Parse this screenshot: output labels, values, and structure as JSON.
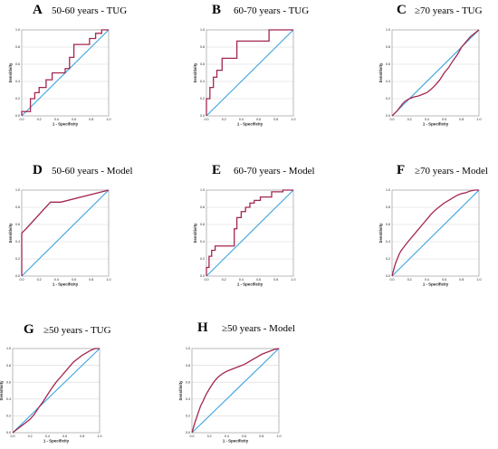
{
  "colors": {
    "roc": "#a3264f",
    "reference": "#3aa3e0",
    "grid": "#d8d8d8"
  },
  "chart_data": [
    {
      "type": "line",
      "letter": "A",
      "title": "50-60 years  - TUG",
      "xlabel": "1 - Specificity",
      "ylabel": "Sensitivity",
      "xlim": [
        0,
        1
      ],
      "ylim": [
        0,
        1
      ],
      "xticks": [
        "0.0",
        "0.2",
        "0.4",
        "0.6",
        "0.8",
        "1.0"
      ],
      "yticks": [
        "0.0",
        "0.2",
        "0.4",
        "0.6",
        "0.8",
        "1.0"
      ],
      "grid": true,
      "series": [
        {
          "x": [
            0,
            0,
            0.1,
            0.1,
            0.15,
            0.15,
            0.2,
            0.2,
            0.28,
            0.28,
            0.35,
            0.35,
            0.4,
            0.4,
            0.5,
            0.5,
            0.55,
            0.55,
            0.6,
            0.6,
            0.7,
            0.7,
            0.78,
            0.78,
            0.85,
            0.85,
            0.92,
            0.92,
            1
          ],
          "y": [
            0,
            0.05,
            0.05,
            0.2,
            0.2,
            0.27,
            0.27,
            0.33,
            0.33,
            0.42,
            0.42,
            0.5,
            0.5,
            0.5,
            0.5,
            0.55,
            0.55,
            0.68,
            0.68,
            0.83,
            0.83,
            0.83,
            0.83,
            0.9,
            0.9,
            0.96,
            0.96,
            1,
            1
          ]
        },
        {
          "x": [
            0,
            1
          ],
          "y": [
            0,
            1
          ]
        }
      ]
    },
    {
      "type": "line",
      "letter": "B",
      "title": "60-70 years  - TUG",
      "xlabel": "1 - Specificity",
      "ylabel": "Sensitivity",
      "xlim": [
        0,
        1
      ],
      "ylim": [
        0,
        1
      ],
      "xticks": [
        "0.0",
        "0.2",
        "0.4",
        "0.6",
        "0.8",
        "1.0"
      ],
      "yticks": [
        "0.0",
        "0.2",
        "0.4",
        "0.6",
        "0.8",
        "1.0"
      ],
      "grid": true,
      "series": [
        {
          "x": [
            0,
            0,
            0.04,
            0.04,
            0.08,
            0.08,
            0.12,
            0.12,
            0.18,
            0.18,
            0.25,
            0.25,
            0.35,
            0.35,
            0.72,
            0.72,
            1
          ],
          "y": [
            0,
            0.2,
            0.2,
            0.33,
            0.33,
            0.45,
            0.45,
            0.53,
            0.53,
            0.67,
            0.67,
            0.67,
            0.67,
            0.87,
            0.87,
            1,
            1
          ]
        },
        {
          "x": [
            0,
            1
          ],
          "y": [
            0,
            1
          ]
        }
      ]
    },
    {
      "type": "line",
      "letter": "C",
      "title": "≥70 years  - TUG",
      "xlabel": "1 - Specificity",
      "ylabel": "Sensitivity",
      "xlim": [
        0,
        1
      ],
      "ylim": [
        0,
        1
      ],
      "xticks": [
        "0.0",
        "0.2",
        "0.4",
        "0.6",
        "0.8",
        "1.0"
      ],
      "yticks": [
        "0.0",
        "0.2",
        "0.4",
        "0.6",
        "0.8",
        "1.0"
      ],
      "grid": true,
      "series": [
        {
          "x": [
            0,
            0.03,
            0.06,
            0.09,
            0.12,
            0.15,
            0.2,
            0.25,
            0.3,
            0.35,
            0.4,
            0.45,
            0.5,
            0.55,
            0.6,
            0.65,
            0.7,
            0.75,
            0.8,
            0.85,
            0.9,
            0.95,
            1
          ],
          "y": [
            0,
            0.03,
            0.06,
            0.1,
            0.14,
            0.17,
            0.2,
            0.22,
            0.23,
            0.25,
            0.27,
            0.31,
            0.36,
            0.42,
            0.5,
            0.56,
            0.64,
            0.71,
            0.8,
            0.86,
            0.92,
            0.96,
            1
          ]
        },
        {
          "x": [
            0,
            1
          ],
          "y": [
            0,
            1
          ]
        }
      ]
    },
    {
      "type": "line",
      "letter": "D",
      "title": "50-60 years  - Model",
      "xlabel": "1 - Specificity",
      "ylabel": "Sensitivity",
      "xlim": [
        0,
        1
      ],
      "ylim": [
        0,
        1
      ],
      "xticks": [
        "0.0",
        "0.2",
        "0.4",
        "0.6",
        "0.8",
        "1.0"
      ],
      "yticks": [
        "0.0",
        "0.2",
        "0.4",
        "0.6",
        "0.8",
        "1.0"
      ],
      "grid": true,
      "series": [
        {
          "x": [
            0,
            0,
            0.05,
            0.33,
            0.38,
            0.45,
            1
          ],
          "y": [
            0,
            0.5,
            0.55,
            0.86,
            0.86,
            0.86,
            1
          ]
        },
        {
          "x": [
            0,
            1
          ],
          "y": [
            0,
            1
          ]
        }
      ]
    },
    {
      "type": "line",
      "letter": "E",
      "title": "60-70 years  - Model",
      "xlabel": "1 - Specificity",
      "ylabel": "Sensitivity",
      "xlim": [
        0,
        1
      ],
      "ylim": [
        0,
        1
      ],
      "xticks": [
        "0.0",
        "0.2",
        "0.4",
        "0.6",
        "0.8",
        "1.0"
      ],
      "yticks": [
        "0.0",
        "0.2",
        "0.4",
        "0.6",
        "0.8",
        "1.0"
      ],
      "grid": true,
      "series": [
        {
          "x": [
            0,
            0,
            0.03,
            0.03,
            0.06,
            0.06,
            0.1,
            0.1,
            0.32,
            0.32,
            0.35,
            0.35,
            0.4,
            0.4,
            0.45,
            0.45,
            0.5,
            0.5,
            0.55,
            0.55,
            0.62,
            0.62,
            0.75,
            0.75,
            0.88,
            0.88,
            1
          ],
          "y": [
            0,
            0.1,
            0.1,
            0.23,
            0.23,
            0.3,
            0.3,
            0.35,
            0.35,
            0.55,
            0.55,
            0.68,
            0.68,
            0.75,
            0.75,
            0.8,
            0.8,
            0.85,
            0.85,
            0.88,
            0.88,
            0.92,
            0.92,
            0.98,
            0.98,
            1,
            1
          ]
        },
        {
          "x": [
            0,
            1
          ],
          "y": [
            0,
            1
          ]
        }
      ]
    },
    {
      "type": "line",
      "letter": "F",
      "title": "≥70 years  - Model",
      "xlabel": "1 - Specificity",
      "ylabel": "Sensitivity",
      "xlim": [
        0,
        1
      ],
      "ylim": [
        0,
        1
      ],
      "xticks": [
        "0.0",
        "0.2",
        "0.4",
        "0.6",
        "0.8",
        "1.0"
      ],
      "yticks": [
        "0.0",
        "0.2",
        "0.4",
        "0.6",
        "0.8",
        "1.0"
      ],
      "grid": true,
      "series": [
        {
          "x": [
            0,
            0.02,
            0.04,
            0.06,
            0.08,
            0.1,
            0.13,
            0.16,
            0.2,
            0.25,
            0.3,
            0.35,
            0.4,
            0.45,
            0.5,
            0.55,
            0.6,
            0.65,
            0.7,
            0.75,
            0.8,
            0.85,
            0.9,
            0.95,
            1
          ],
          "y": [
            0,
            0.08,
            0.15,
            0.2,
            0.25,
            0.29,
            0.33,
            0.37,
            0.42,
            0.48,
            0.54,
            0.6,
            0.66,
            0.72,
            0.77,
            0.81,
            0.85,
            0.88,
            0.91,
            0.94,
            0.96,
            0.97,
            0.99,
            1,
            1
          ]
        },
        {
          "x": [
            0,
            1
          ],
          "y": [
            0,
            1
          ]
        }
      ]
    },
    {
      "type": "line",
      "letter": "G",
      "title": "≥50 years - TUG",
      "xlabel": "1 - Specificity",
      "ylabel": "Sensitivity",
      "xlim": [
        0,
        1
      ],
      "ylim": [
        0,
        1
      ],
      "xticks": [
        "0.0",
        "0.2",
        "0.4",
        "0.6",
        "0.8",
        "1.0"
      ],
      "yticks": [
        "0.0",
        "0.2",
        "0.4",
        "0.6",
        "0.8",
        "1.0"
      ],
      "grid": true,
      "series": [
        {
          "x": [
            0,
            0.05,
            0.1,
            0.15,
            0.2,
            0.25,
            0.3,
            0.35,
            0.4,
            0.45,
            0.5,
            0.55,
            0.6,
            0.65,
            0.7,
            0.75,
            0.8,
            0.85,
            0.9,
            0.95,
            1
          ],
          "y": [
            0,
            0.04,
            0.08,
            0.12,
            0.16,
            0.22,
            0.3,
            0.37,
            0.45,
            0.53,
            0.6,
            0.66,
            0.72,
            0.78,
            0.84,
            0.88,
            0.92,
            0.95,
            0.98,
            1,
            1
          ]
        },
        {
          "x": [
            0,
            1
          ],
          "y": [
            0,
            1
          ]
        }
      ]
    },
    {
      "type": "line",
      "letter": "H",
      "title": "≥50 years - Model",
      "xlabel": "1 - Specificity",
      "ylabel": "Sensitivity",
      "xlim": [
        0,
        1
      ],
      "ylim": [
        0,
        1
      ],
      "xticks": [
        "0.0",
        "0.2",
        "0.4",
        "0.6",
        "0.8",
        "1.0"
      ],
      "yticks": [
        "0.0",
        "0.2",
        "0.4",
        "0.6",
        "0.8",
        "1.0"
      ],
      "grid": true,
      "series": [
        {
          "x": [
            0,
            0.02,
            0.04,
            0.06,
            0.08,
            0.1,
            0.13,
            0.16,
            0.2,
            0.25,
            0.3,
            0.35,
            0.4,
            0.45,
            0.5,
            0.55,
            0.6,
            0.65,
            0.7,
            0.75,
            0.8,
            0.85,
            0.9,
            0.95,
            1
          ],
          "y": [
            0,
            0.07,
            0.14,
            0.2,
            0.26,
            0.32,
            0.38,
            0.45,
            0.52,
            0.6,
            0.66,
            0.7,
            0.73,
            0.75,
            0.77,
            0.79,
            0.81,
            0.84,
            0.87,
            0.9,
            0.93,
            0.95,
            0.97,
            0.99,
            1
          ]
        },
        {
          "x": [
            0,
            1
          ],
          "y": [
            0,
            1
          ]
        }
      ]
    }
  ]
}
